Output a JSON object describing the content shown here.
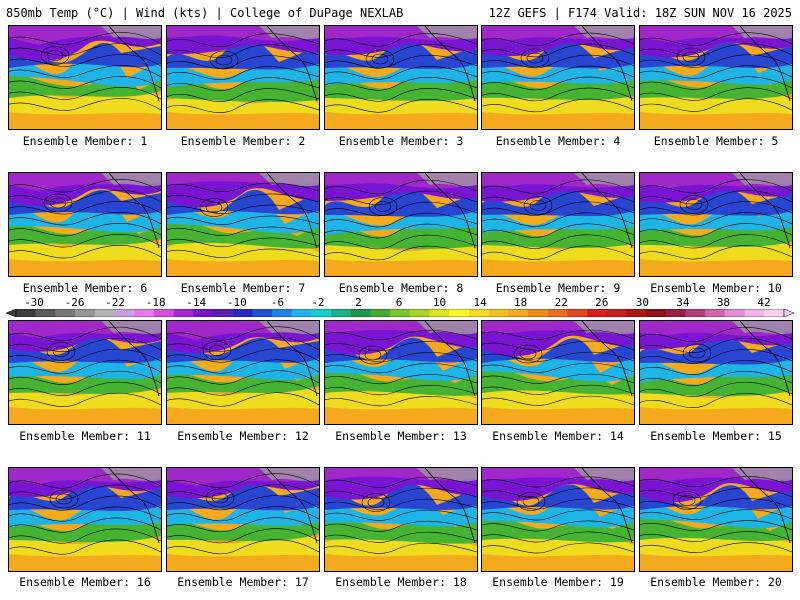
{
  "header": {
    "left_title": "850mb Temp (°C) | Wind (kts) | College of DuPage NEXLAB",
    "right_title": "12Z GEFS | F174 Valid: 18Z SUN NOV 16 2025"
  },
  "members": [
    {
      "label": "Ensemble Member: 1"
    },
    {
      "label": "Ensemble Member: 2"
    },
    {
      "label": "Ensemble Member: 3"
    },
    {
      "label": "Ensemble Member: 4"
    },
    {
      "label": "Ensemble Member: 5"
    },
    {
      "label": "Ensemble Member: 6"
    },
    {
      "label": "Ensemble Member: 7"
    },
    {
      "label": "Ensemble Member: 8"
    },
    {
      "label": "Ensemble Member: 9"
    },
    {
      "label": "Ensemble Member: 10"
    },
    {
      "label": "Ensemble Member: 11"
    },
    {
      "label": "Ensemble Member: 12"
    },
    {
      "label": "Ensemble Member: 13"
    },
    {
      "label": "Ensemble Member: 14"
    },
    {
      "label": "Ensemble Member: 15"
    },
    {
      "label": "Ensemble Member: 16"
    },
    {
      "label": "Ensemble Member: 17"
    },
    {
      "label": "Ensemble Member: 18"
    },
    {
      "label": "Ensemble Member: 19"
    },
    {
      "label": "Ensemble Member: 20"
    }
  ],
  "colorbar": {
    "labels": [
      "-30",
      "-26",
      "-22",
      "-18",
      "-14",
      "-10",
      "-6",
      "-2",
      "2",
      "6",
      "10",
      "14",
      "18",
      "22",
      "26",
      "30",
      "34",
      "38",
      "42"
    ],
    "colors": [
      "#3c3c3c",
      "#5a5a5a",
      "#787878",
      "#969696",
      "#b4b4b4",
      "#c8a0e6",
      "#e678f0",
      "#d250dc",
      "#aa28d2",
      "#7814c8",
      "#5a1eb4",
      "#2828c8",
      "#1e50dc",
      "#1e82f0",
      "#1eb4f0",
      "#14d2c8",
      "#14b48c",
      "#1e9650",
      "#46aa32",
      "#78c828",
      "#aad21e",
      "#dce61e",
      "#fafa28",
      "#fadc1e",
      "#f5c31e",
      "#f5aa1e",
      "#f08c1e",
      "#ee6e1e",
      "#e6461e",
      "#dc1e1e",
      "#c81e1e",
      "#aa1414",
      "#8c1414",
      "#9a1e46",
      "#b43c78",
      "#d264aa",
      "#e68cd2",
      "#f0b4e6",
      "#fad2f0"
    ]
  },
  "map_colors": {
    "cold_top": "#a028c8",
    "purple": "#7814d2",
    "blue": "#2846d2",
    "cyan": "#1eb4e6",
    "green": "#46b432",
    "yellow": "#f0dc1e",
    "orange": "#f5aa1e",
    "land_gray": "#a0a0a0"
  }
}
